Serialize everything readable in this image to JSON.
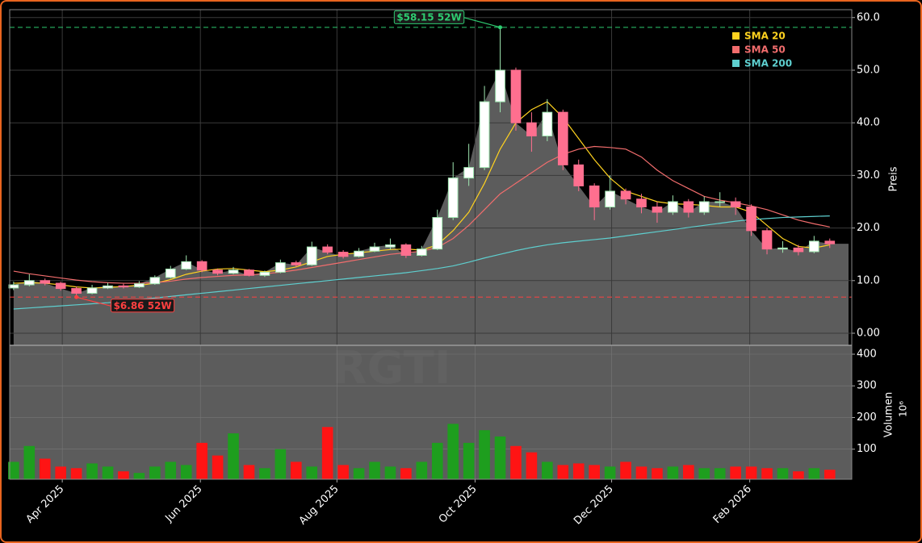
{
  "chart_data": {
    "type": "candlestick",
    "watermark": "RGTI",
    "ylabel": "Preis",
    "ylim": [
      -2.3,
      61.5
    ],
    "yticks": [
      {
        "value": 0,
        "label": "0.00"
      },
      {
        "value": 10,
        "label": "10.0"
      },
      {
        "value": 20,
        "label": "20.0"
      },
      {
        "value": 30,
        "label": "30.0"
      },
      {
        "value": 40,
        "label": "40.0"
      },
      {
        "value": 50,
        "label": "50.0"
      },
      {
        "value": 60,
        "label": "60.0"
      }
    ],
    "xlim": [
      -0.25,
      53.4
    ],
    "xticks": [
      {
        "value": 3.1,
        "label": "Apr 2025"
      },
      {
        "value": 11.9,
        "label": "Jun 2025"
      },
      {
        "value": 20.6,
        "label": "Aug 2025"
      },
      {
        "value": 29.4,
        "label": "Oct 2025"
      },
      {
        "value": 38.1,
        "label": "Dec 2025"
      },
      {
        "value": 46.9,
        "label": "Feb 2026"
      }
    ],
    "grid": true,
    "up_color": "#9fe6b0",
    "down_color": "#ff6f8f",
    "area_color": "#5c5c5c",
    "open": [
      8.6,
      9.2,
      10.0,
      9.5,
      8.5,
      7.6,
      8.6,
      9.0,
      8.8,
      9.4,
      10.6,
      12.2,
      13.6,
      12.0,
      11.4,
      12.0,
      11.0,
      11.6,
      13.4,
      13.0,
      16.4,
      15.4,
      14.6,
      15.6,
      16.4,
      16.8,
      14.8,
      16.0,
      22.0,
      29.5,
      31.5,
      44.0,
      50.0,
      40.0,
      37.5,
      42.0,
      32.0,
      28.0,
      24.0,
      27.0,
      25.5,
      24.0,
      23.0,
      25.0,
      23.0,
      25.0,
      25.0,
      24.0,
      19.5,
      16.0,
      16.2,
      15.5,
      17.5
    ],
    "high": [
      9.8,
      11.2,
      10.4,
      9.8,
      8.9,
      9.2,
      9.6,
      9.4,
      9.9,
      11.0,
      12.8,
      14.8,
      13.9,
      12.3,
      12.6,
      12.2,
      11.9,
      14.0,
      13.8,
      17.4,
      16.9,
      15.8,
      16.2,
      17.2,
      18.0,
      17.1,
      16.6,
      23.5,
      32.5,
      36.0,
      47.0,
      58.15,
      50.5,
      42.0,
      44.5,
      42.5,
      33.0,
      28.5,
      30.0,
      27.5,
      26.5,
      25.0,
      26.2,
      25.5,
      26.0,
      26.8,
      25.8,
      24.5,
      20.0,
      17.5,
      16.8,
      18.5,
      18.0
    ],
    "low": [
      8.2,
      8.9,
      9.1,
      8.1,
      6.86,
      7.4,
      8.4,
      8.5,
      8.6,
      9.2,
      10.4,
      12.0,
      11.6,
      11.0,
      11.2,
      10.8,
      10.7,
      11.4,
      12.6,
      12.8,
      15.0,
      14.2,
      14.4,
      15.4,
      15.9,
      14.3,
      14.6,
      15.8,
      21.5,
      28.0,
      31.0,
      42.0,
      38.5,
      34.5,
      36.5,
      31.0,
      27.0,
      21.5,
      23.5,
      24.5,
      22.8,
      21.0,
      22.5,
      22.0,
      22.5,
      24.0,
      22.5,
      18.5,
      15.0,
      15.3,
      14.8,
      15.2,
      16.2
    ],
    "close": [
      9.2,
      10.0,
      9.5,
      8.5,
      7.6,
      8.6,
      9.0,
      8.8,
      9.4,
      10.6,
      12.2,
      13.6,
      12.0,
      11.4,
      12.0,
      11.0,
      11.6,
      13.4,
      13.0,
      16.4,
      15.4,
      14.6,
      15.6,
      16.4,
      16.8,
      14.8,
      16.0,
      22.0,
      29.5,
      31.5,
      44.0,
      50.0,
      40.0,
      37.5,
      42.0,
      32.0,
      28.0,
      24.0,
      27.0,
      25.5,
      24.0,
      23.0,
      25.0,
      23.0,
      25.0,
      25.0,
      24.0,
      19.5,
      16.0,
      16.2,
      15.5,
      17.5,
      17.0
    ],
    "sma": [
      {
        "name": "SMA 20",
        "color": "#ffd21f",
        "values": [
          9.5,
          9.6,
          9.5,
          9.2,
          8.8,
          8.6,
          8.7,
          8.9,
          9.1,
          9.5,
          10.2,
          11.2,
          11.8,
          12.2,
          12.3,
          12.0,
          11.7,
          12.0,
          12.6,
          13.6,
          14.6,
          15.0,
          15.3,
          15.6,
          15.9,
          16.0,
          15.8,
          16.8,
          19.5,
          23.0,
          28.5,
          35.0,
          40.0,
          42.5,
          44.0,
          41.0,
          37.0,
          33.0,
          29.5,
          27.0,
          26.0,
          25.0,
          24.6,
          24.5,
          24.3,
          24.0,
          24.0,
          23.0,
          20.5,
          18.0,
          16.5,
          16.2,
          16.8
        ]
      },
      {
        "name": "SMA 50",
        "color": "#f26d6d",
        "values": [
          11.8,
          11.3,
          10.9,
          10.5,
          10.1,
          9.8,
          9.6,
          9.5,
          9.5,
          9.6,
          9.9,
          10.3,
          10.6,
          10.8,
          11.0,
          11.1,
          11.3,
          11.6,
          12.0,
          12.5,
          13.0,
          13.5,
          14.0,
          14.5,
          15.0,
          15.3,
          15.6,
          16.3,
          18.0,
          20.5,
          23.5,
          26.5,
          28.5,
          30.5,
          32.5,
          34.0,
          35.0,
          35.5,
          35.3,
          35.0,
          33.5,
          31.0,
          29.0,
          27.5,
          26.0,
          25.3,
          24.8,
          24.2,
          23.5,
          22.5,
          21.5,
          20.8,
          20.2
        ]
      },
      {
        "name": "SMA 200",
        "color": "#5ecfcf",
        "values": [
          4.6,
          4.8,
          5.0,
          5.2,
          5.4,
          5.6,
          5.8,
          6.1,
          6.4,
          6.7,
          7.0,
          7.3,
          7.6,
          7.9,
          8.2,
          8.5,
          8.8,
          9.1,
          9.4,
          9.7,
          10.0,
          10.3,
          10.6,
          10.9,
          11.2,
          11.5,
          11.9,
          12.3,
          12.8,
          13.5,
          14.3,
          15.0,
          15.7,
          16.3,
          16.8,
          17.2,
          17.5,
          17.8,
          18.1,
          18.5,
          18.9,
          19.3,
          19.7,
          20.1,
          20.5,
          20.9,
          21.3,
          21.6,
          21.8,
          22.0,
          22.1,
          22.2,
          22.3
        ]
      }
    ],
    "legend": "upper right",
    "annotations": [
      {
        "text": "$58.15 52W",
        "value": 58.15,
        "color": "#2ecc71"
      },
      {
        "text": "$6.86 52W",
        "value": 6.86,
        "color": "#ff4040"
      }
    ],
    "volume": {
      "ylabel": "Volumen",
      "offset_label": "10⁶",
      "ylim": [
        5,
        428
      ],
      "yticks": [
        100,
        200,
        300,
        400
      ],
      "up_color": "#1e9e1e",
      "down_color": "#ff1414",
      "values": [
        60,
        110,
        70,
        45,
        40,
        55,
        45,
        30,
        25,
        45,
        60,
        50,
        120,
        80,
        150,
        50,
        40,
        100,
        60,
        45,
        170,
        50,
        40,
        60,
        45,
        40,
        60,
        120,
        180,
        120,
        160,
        140,
        110,
        90,
        60,
        50,
        55,
        50,
        45,
        60,
        45,
        40,
        45,
        50,
        40,
        40,
        45,
        45,
        40,
        40,
        30,
        40,
        35
      ]
    }
  }
}
